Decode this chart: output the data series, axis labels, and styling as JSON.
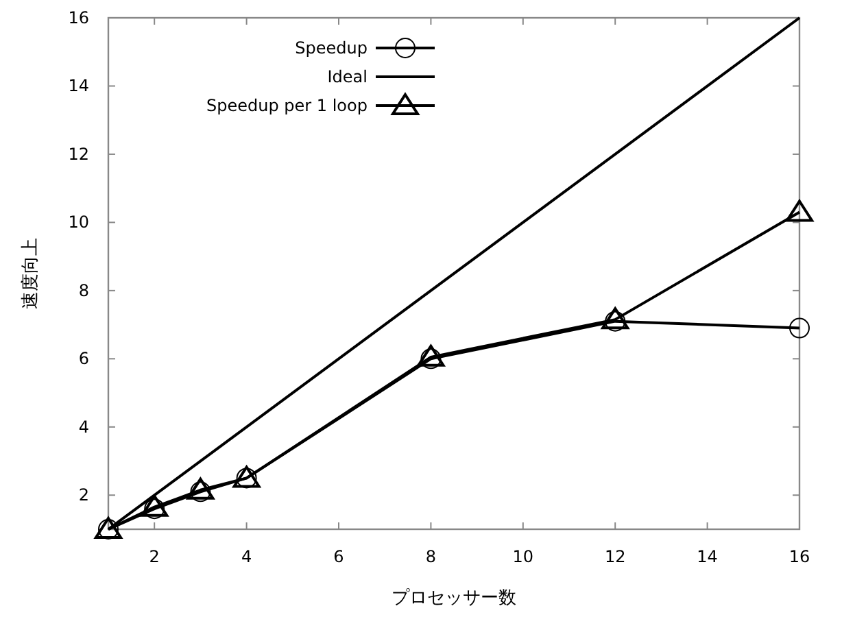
{
  "chart_data": {
    "type": "line",
    "xlabel": "プロセッサー数",
    "ylabel": "速度向上",
    "x": [
      1,
      2,
      3,
      4,
      8,
      12,
      16
    ],
    "xlim": [
      1,
      16
    ],
    "xticks": [
      2,
      4,
      6,
      8,
      10,
      12,
      14,
      16
    ],
    "ylim": [
      1,
      16
    ],
    "yticks": [
      2,
      4,
      6,
      8,
      10,
      12,
      14,
      16
    ],
    "grid": false,
    "legend": "top left",
    "line_style": "solid",
    "series": [
      {
        "name": "Speedup",
        "color": "#000000",
        "marker": "circle",
        "values": [
          1,
          1.6,
          2.1,
          2.5,
          6.0,
          7.1,
          6.9
        ]
      },
      {
        "name": "Ideal",
        "color": "#000000",
        "x": [
          1,
          16
        ],
        "values": [
          1,
          16
        ]
      },
      {
        "name": "Speedup per 1 loop",
        "color": "#000000",
        "marker": "triangle",
        "values": [
          1,
          1.65,
          2.15,
          2.5,
          6.05,
          7.15,
          10.3
        ]
      }
    ]
  }
}
